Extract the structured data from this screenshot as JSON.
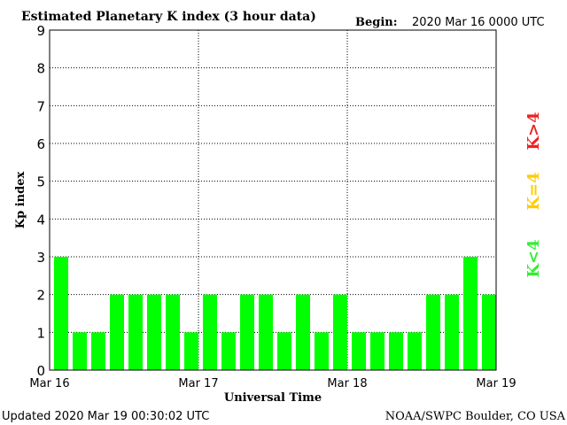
{
  "chart_data": {
    "type": "bar",
    "title": "Estimated Planetary K index (3 hour data)",
    "begin_label": "Begin:",
    "begin_value": "2020 Mar 16 0000 UTC",
    "xlabel": "Universal Time",
    "ylabel": "Kp index",
    "ylim": [
      0,
      9
    ],
    "yticks": [
      "0",
      "1",
      "2",
      "3",
      "4",
      "5",
      "6",
      "7",
      "8",
      "9"
    ],
    "xticks": [
      "Mar 16",
      "Mar 17",
      "Mar 18",
      "Mar 19"
    ],
    "grid": true,
    "bars_per_day": 8,
    "values": [
      3,
      1,
      1,
      2,
      2,
      2,
      2,
      1,
      2,
      1,
      2,
      2,
      1,
      2,
      1,
      2,
      1,
      1,
      1,
      1,
      2,
      2,
      3,
      2
    ],
    "legend": [
      {
        "label": "K<4",
        "color": "#33ee33"
      },
      {
        "label": "K=4",
        "color": "#ffcc00"
      },
      {
        "label": "K>4",
        "color": "#ee2222"
      }
    ],
    "bar_color": "#00ff00"
  },
  "footer": {
    "updated": "Updated 2020 Mar 19 00:30:02 UTC",
    "source": "NOAA/SWPC Boulder, CO USA"
  }
}
